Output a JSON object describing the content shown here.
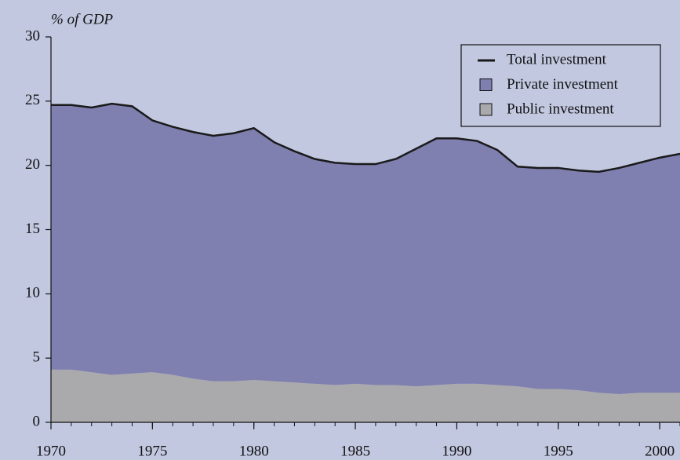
{
  "chart_data": {
    "type": "stacked_area",
    "y_label": "% of GDP",
    "x": [
      1970,
      1971,
      1972,
      1973,
      1974,
      1975,
      1976,
      1977,
      1978,
      1979,
      1980,
      1981,
      1982,
      1983,
      1984,
      1985,
      1986,
      1987,
      1988,
      1989,
      1990,
      1991,
      1992,
      1993,
      1994,
      1995,
      1996,
      1997,
      1998,
      1999,
      2000,
      2001
    ],
    "series": [
      {
        "name": "Total investment",
        "type": "line",
        "color": "#1a1a1a",
        "values": [
          24.7,
          24.7,
          24.5,
          24.8,
          24.6,
          23.5,
          23.0,
          22.6,
          22.3,
          22.5,
          22.9,
          21.8,
          21.1,
          20.5,
          20.2,
          20.1,
          20.1,
          20.5,
          21.3,
          22.1,
          22.1,
          21.9,
          21.2,
          19.9,
          19.8,
          19.8,
          19.6,
          19.5,
          19.8,
          20.2,
          20.6,
          20.9
        ]
      },
      {
        "name": "Private investment",
        "type": "area",
        "color": "#7f7fb0",
        "values": [
          20.6,
          20.6,
          20.6,
          21.1,
          20.8,
          19.6,
          19.3,
          19.2,
          19.1,
          19.3,
          19.6,
          18.6,
          18.0,
          17.5,
          17.3,
          17.1,
          17.2,
          17.6,
          18.5,
          19.2,
          19.1,
          18.9,
          18.3,
          17.1,
          17.2,
          17.2,
          17.1,
          17.2,
          17.6,
          17.9,
          18.3,
          18.6
        ]
      },
      {
        "name": "Public investment",
        "type": "area",
        "color": "#aaaaac",
        "values": [
          4.1,
          4.1,
          3.9,
          3.7,
          3.8,
          3.9,
          3.7,
          3.4,
          3.2,
          3.2,
          3.3,
          3.2,
          3.1,
          3.0,
          2.9,
          3.0,
          2.9,
          2.9,
          2.8,
          2.9,
          3.0,
          3.0,
          2.9,
          2.8,
          2.6,
          2.6,
          2.5,
          2.3,
          2.2,
          2.3,
          2.3,
          2.3
        ]
      }
    ],
    "xlim": [
      1970,
      2001
    ],
    "xticks": [
      1970,
      1975,
      1980,
      1985,
      1990,
      1995,
      2000
    ],
    "ylim": [
      0,
      30
    ],
    "yticks": [
      0,
      5,
      10,
      15,
      20,
      25,
      30
    ],
    "legend": "top-right",
    "background": "#c3c8e1"
  }
}
